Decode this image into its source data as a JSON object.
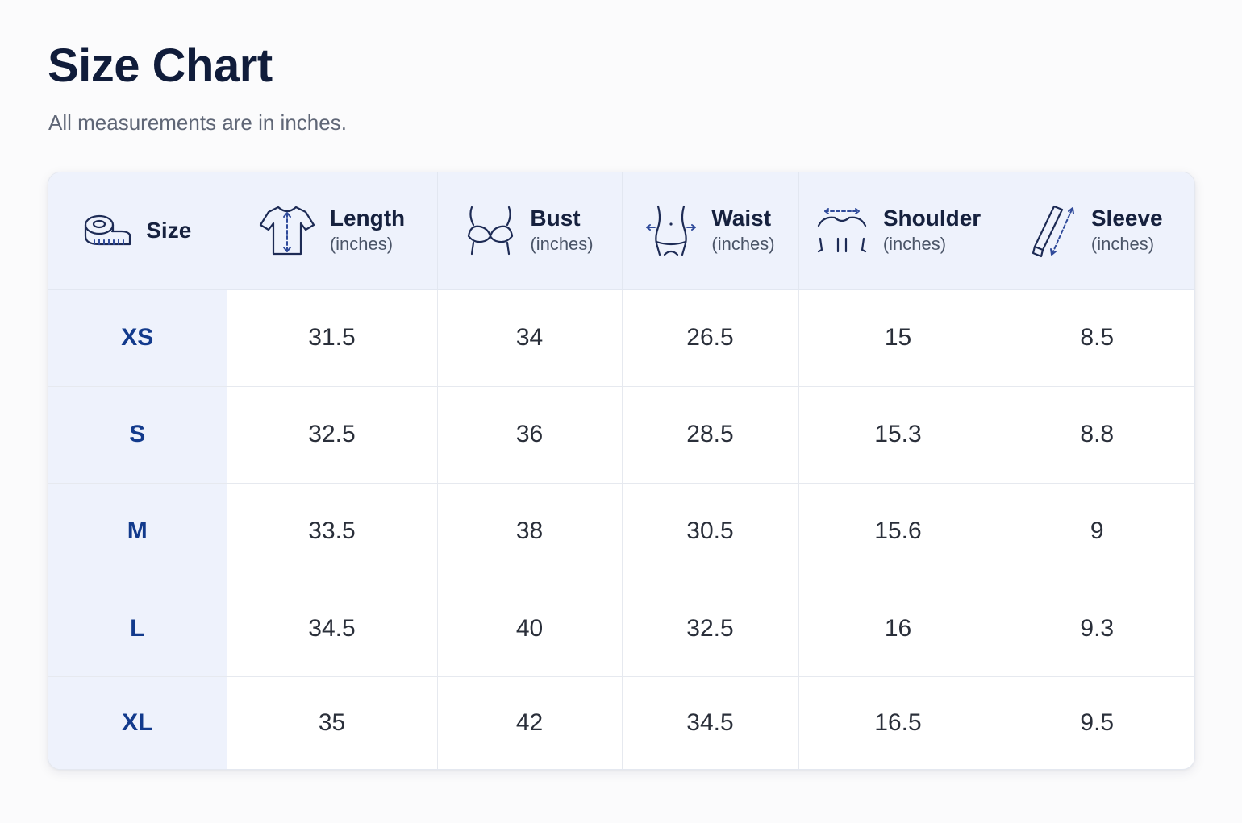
{
  "page": {
    "title": "Size Chart",
    "subtitle": "All measurements are in inches."
  },
  "colors": {
    "title": "#101c3a",
    "accent": "#123a8c",
    "header_bg": "#eef2fc",
    "icon": "#1d2b55"
  },
  "table": {
    "columns": [
      {
        "name": "Size",
        "unit": "",
        "icon": "tape-measure-icon"
      },
      {
        "name": "Length",
        "unit": "(inches)",
        "icon": "shirt-length-icon"
      },
      {
        "name": "Bust",
        "unit": "(inches)",
        "icon": "bra-bust-icon"
      },
      {
        "name": "Waist",
        "unit": "(inches)",
        "icon": "waist-torso-icon"
      },
      {
        "name": "Shoulder",
        "unit": "(inches)",
        "icon": "shoulder-width-icon"
      },
      {
        "name": "Sleeve",
        "unit": "(inches)",
        "icon": "sleeve-length-icon"
      }
    ],
    "rows": [
      {
        "size": "XS",
        "values": [
          "31.5",
          "34",
          "26.5",
          "15",
          "8.5"
        ]
      },
      {
        "size": "S",
        "values": [
          "32.5",
          "36",
          "28.5",
          "15.3",
          "8.8"
        ]
      },
      {
        "size": "M",
        "values": [
          "33.5",
          "38",
          "30.5",
          "15.6",
          "9"
        ]
      },
      {
        "size": "L",
        "values": [
          "34.5",
          "40",
          "32.5",
          "16",
          "9.3"
        ]
      },
      {
        "size": "XL",
        "values": [
          "35",
          "42",
          "34.5",
          "16.5",
          "9.5"
        ]
      }
    ]
  }
}
